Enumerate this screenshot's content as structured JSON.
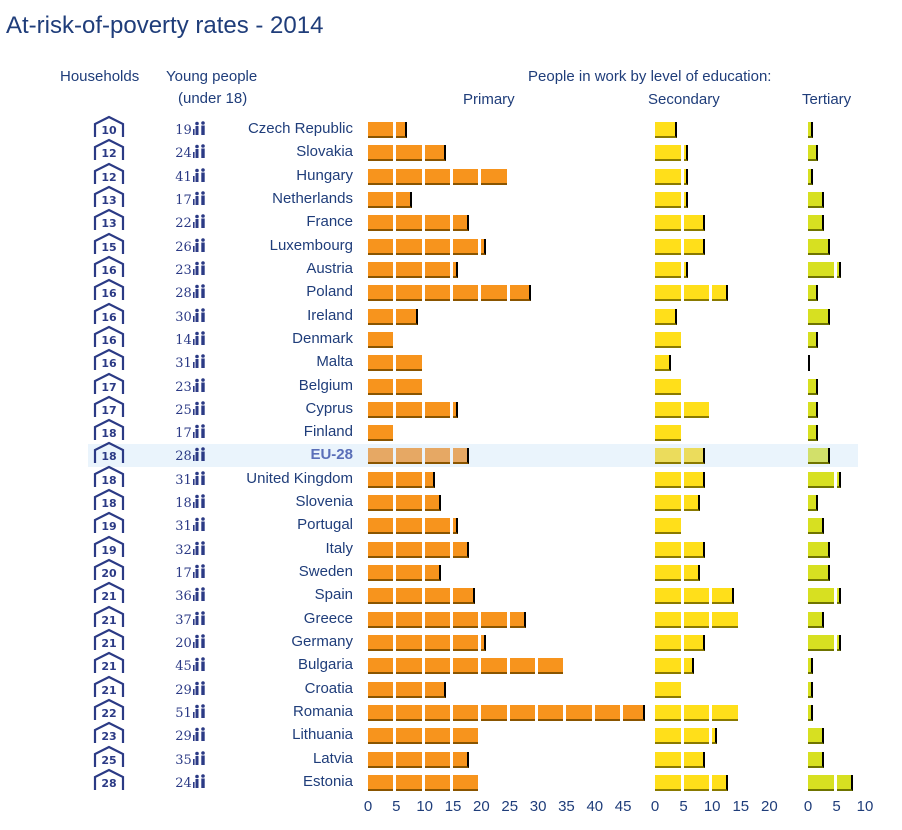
{
  "title": "At-risk-of-poverty  rates - 2014",
  "headers": {
    "households": "Households",
    "young_people": "Young people",
    "young_people_sub": "(under 18)",
    "in_work": "People in work by level of education:",
    "primary": "Primary",
    "secondary": "Secondary",
    "tertiary": "Tertiary"
  },
  "highlight_row": "EU-28",
  "colors": {
    "primary": "#f7941d",
    "secondary": "#ffdf1a",
    "tertiary": "#d7e021",
    "text": "#1f3d7a",
    "highlight": "#eaf4fc"
  },
  "icons": {
    "households": "house-icon",
    "young_people": "family-icon"
  },
  "chart_data": {
    "type": "bar",
    "orientation": "horizontal",
    "title": "At-risk-of-poverty  rates - 2014",
    "categories": [
      "Czech Republic",
      "Slovakia",
      "Hungary",
      "Netherlands",
      "France",
      "Luxembourg",
      "Austria",
      "Poland",
      "Ireland",
      "Denmark",
      "Malta",
      "Belgium",
      "Cyprus",
      "Finland",
      "EU-28",
      "United Kingdom",
      "Slovenia",
      "Portugal",
      "Italy",
      "Sweden",
      "Spain",
      "Greece",
      "Germany",
      "Bulgaria",
      "Croatia",
      "Romania",
      "Lithuania",
      "Latvia",
      "Estonia"
    ],
    "households": [
      10,
      12,
      12,
      13,
      13,
      15,
      16,
      16,
      16,
      16,
      16,
      17,
      17,
      18,
      18,
      18,
      18,
      19,
      19,
      20,
      21,
      21,
      21,
      21,
      21,
      22,
      23,
      25,
      28
    ],
    "young_people": [
      19,
      24,
      41,
      17,
      22,
      26,
      23,
      28,
      30,
      14,
      31,
      23,
      25,
      17,
      28,
      31,
      18,
      31,
      32,
      17,
      36,
      37,
      20,
      45,
      29,
      51,
      29,
      35,
      24
    ],
    "series": [
      {
        "name": "Primary",
        "values": [
          7,
          14,
          25,
          8,
          18,
          21,
          16,
          29,
          9,
          5,
          10,
          10,
          16,
          5,
          18,
          12,
          13,
          16,
          18,
          13,
          19,
          28,
          21,
          35,
          14,
          49,
          20,
          18,
          20
        ]
      },
      {
        "name": "Secondary",
        "values": [
          4,
          6,
          6,
          6,
          9,
          9,
          6,
          13,
          4,
          5,
          3,
          5,
          10,
          5,
          9,
          9,
          8,
          5,
          9,
          8,
          14,
          15,
          9,
          7,
          5,
          15,
          11,
          9,
          13
        ]
      },
      {
        "name": "Tertiary",
        "values": [
          1,
          2,
          1,
          3,
          3,
          4,
          6,
          2,
          4,
          2,
          0,
          2,
          2,
          2,
          4,
          6,
          2,
          3,
          4,
          4,
          6,
          3,
          6,
          1,
          1,
          1,
          3,
          3,
          8
        ]
      }
    ],
    "axes": [
      {
        "series": "Primary",
        "ticks": [
          "0",
          "5",
          "10",
          "15",
          "20",
          "25",
          "30",
          "35",
          "40",
          "45"
        ],
        "range": [
          0,
          50
        ]
      },
      {
        "series": "Secondary",
        "ticks": [
          "0",
          "5",
          "10",
          "15",
          "20"
        ],
        "range": [
          0,
          20
        ]
      },
      {
        "series": "Tertiary",
        "ticks": [
          "0",
          "5",
          "10"
        ],
        "range": [
          0,
          10
        ]
      }
    ],
    "grid": false
  }
}
